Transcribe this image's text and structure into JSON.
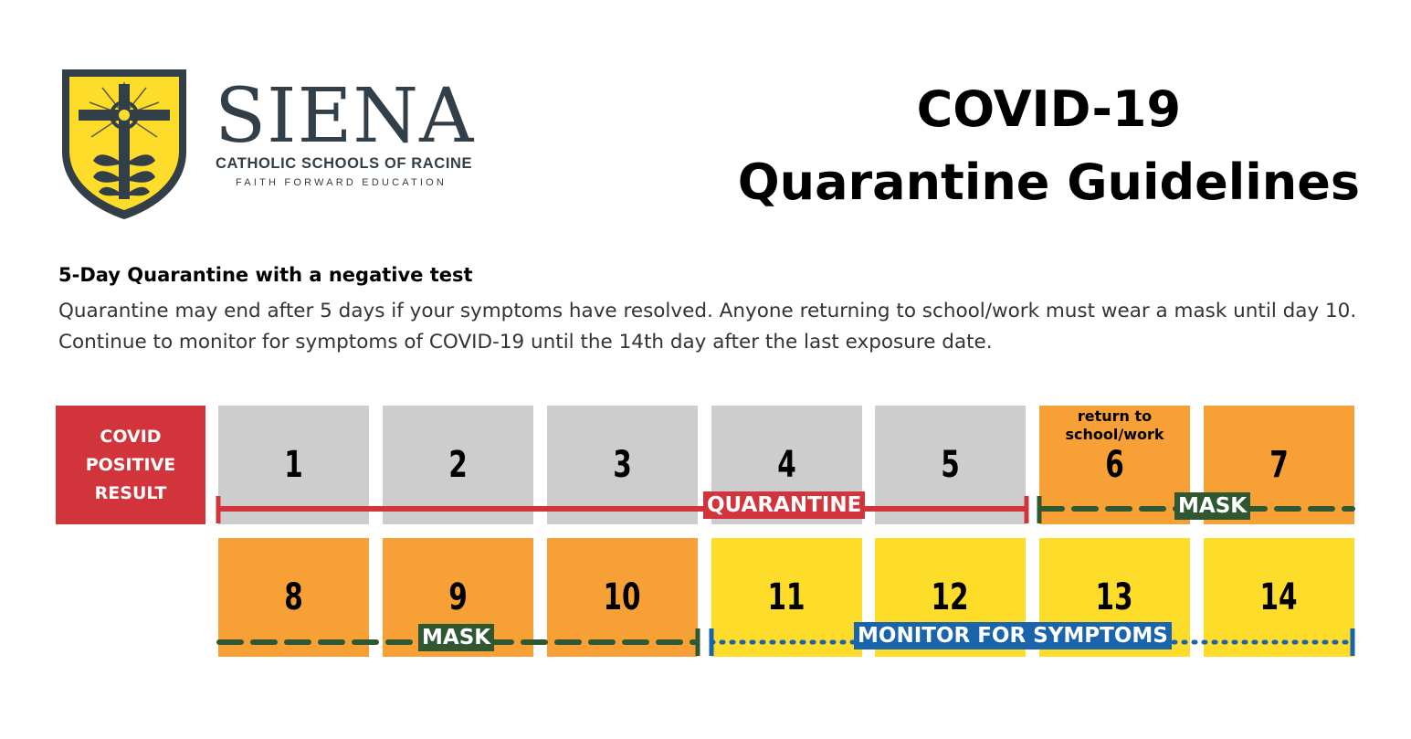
{
  "logo": {
    "name": "SIENA",
    "subtitle": "CATHOLIC SCHOOLS OF RACINE",
    "tagline": "FAITH FORWARD EDUCATION",
    "colors": {
      "shield_fill": "#fddc2a",
      "shield_border": "#333f48",
      "text": "#333f48"
    }
  },
  "title": {
    "line1": "COVID-19",
    "line2": "Quarantine Guidelines"
  },
  "section": {
    "heading": "5-Day Quarantine with a negative test",
    "body": "Quarantine may end after 5 days if your symptoms have resolved. Anyone returning to school/work must wear a mask until day 10. Continue to monitor for symptoms of COVID-19 until the 14th day after the last exposure date."
  },
  "timeline": {
    "start_label": "COVID POSITIVE RESULT",
    "return_note_line1": "return to",
    "return_note_line2": "school/work",
    "days": [
      {
        "day": "1",
        "status": "quarantine"
      },
      {
        "day": "2",
        "status": "quarantine"
      },
      {
        "day": "3",
        "status": "quarantine"
      },
      {
        "day": "4",
        "status": "quarantine"
      },
      {
        "day": "5",
        "status": "quarantine"
      },
      {
        "day": "6",
        "status": "mask"
      },
      {
        "day": "7",
        "status": "mask"
      },
      {
        "day": "8",
        "status": "mask"
      },
      {
        "day": "9",
        "status": "mask"
      },
      {
        "day": "10",
        "status": "mask"
      },
      {
        "day": "11",
        "status": "monitor"
      },
      {
        "day": "12",
        "status": "monitor"
      },
      {
        "day": "13",
        "status": "monitor"
      },
      {
        "day": "14",
        "status": "monitor"
      }
    ],
    "bars": {
      "quarantine_label": "QUARANTINE",
      "mask_label": "MASK",
      "monitor_label": "MONITOR FOR SYMPTOMS"
    },
    "colors": {
      "covid_red": "#d1353b",
      "quarantine_gray": "#cdcdcd",
      "mask_orange": "#f7a036",
      "monitor_yellow": "#fddc2a",
      "mask_green": "#2f5731",
      "monitor_blue": "#1a64ac"
    }
  }
}
